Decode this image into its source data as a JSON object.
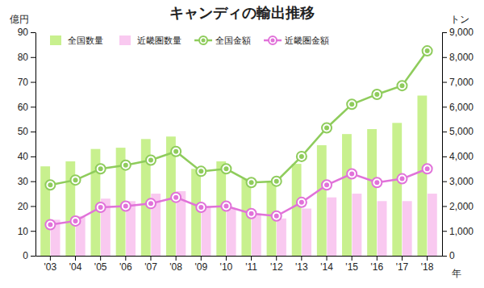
{
  "chart_data": {
    "type": "bar",
    "title": "キャンディの輸出推移",
    "y_label": "億円",
    "y2_label": "トン",
    "x_label": "年",
    "categories": [
      "'03",
      "'04",
      "'05",
      "'06",
      "'07",
      "'08",
      "'09",
      "'10",
      "'11",
      "'12",
      "'13",
      "'14",
      "'15",
      "'16",
      "'17",
      "'18"
    ],
    "series": [
      {
        "name": "全国数量",
        "type": "bar",
        "axis": "y2",
        "color": "#c8f08e",
        "values": [
          3600,
          3800,
          4300,
          4350,
          4700,
          4800,
          3500,
          3800,
          3100,
          3000,
          3700,
          4450,
          4900,
          5100,
          5350,
          6450
        ]
      },
      {
        "name": "近畿圏数量",
        "type": "bar",
        "axis": "y2",
        "color": "#f9c9f0",
        "values": [
          1450,
          1600,
          2300,
          2200,
          2500,
          2600,
          2000,
          1900,
          1700,
          1500,
          1900,
          2350,
          2500,
          2200,
          2200,
          2500
        ]
      },
      {
        "name": "全国金額",
        "type": "line",
        "color": "#8fcc5c",
        "marker": "circle",
        "values": [
          28.5,
          30.5,
          35,
          36.5,
          38.5,
          42,
          34,
          35,
          29.5,
          30,
          40,
          51.5,
          61,
          65,
          68.5,
          82.5
        ]
      },
      {
        "name": "近畿圏金額",
        "type": "line",
        "color": "#e172d9",
        "marker": "circle",
        "values": [
          12.5,
          14,
          19.5,
          20,
          21,
          23.5,
          19.5,
          20,
          17,
          16,
          21.5,
          28.5,
          33,
          29.5,
          31,
          35
        ]
      }
    ],
    "ylim": [
      0,
      90
    ],
    "yticks": [
      0,
      10,
      20,
      30,
      40,
      50,
      60,
      70,
      80,
      90
    ],
    "y2lim": [
      0,
      9000
    ],
    "y2ticks": [
      0,
      {
        "value": 1000,
        "label": "1,000"
      },
      {
        "value": 2000,
        "label": "2,000"
      },
      {
        "value": 3000,
        "label": "3,000"
      },
      {
        "value": 4000,
        "label": "4,000"
      },
      {
        "value": 5000,
        "label": "5,000"
      },
      {
        "value": 6000,
        "label": "6,000"
      },
      {
        "value": 7000,
        "label": "7,000"
      },
      {
        "value": 8000,
        "label": "8,000"
      },
      {
        "value": 9000,
        "label": "9,000"
      }
    ],
    "grid": false,
    "legend": "top-left"
  }
}
